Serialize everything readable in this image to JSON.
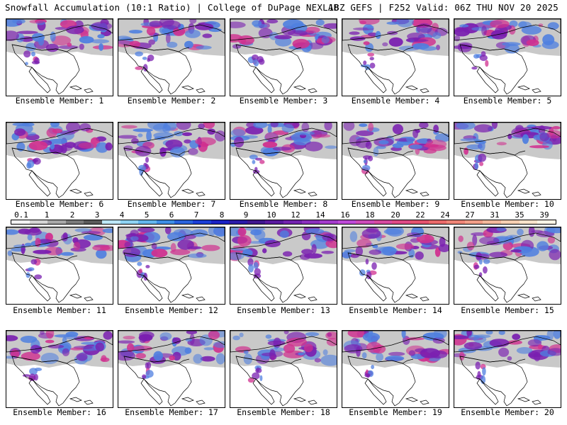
{
  "header": {
    "title_left": "Snowfall Accumulation (10:1 Ratio) | College of DuPage NEXLAB",
    "title_right": "18Z GEFS | F252 Valid: 06Z THU NOV 20 2025"
  },
  "members": [
    "Ensemble Member: 1",
    "Ensemble Member: 2",
    "Ensemble Member: 3",
    "Ensemble Member: 4",
    "Ensemble Member: 5",
    "Ensemble Member: 6",
    "Ensemble Member: 7",
    "Ensemble Member: 8",
    "Ensemble Member: 9",
    "Ensemble Member: 10",
    "Ensemble Member: 11",
    "Ensemble Member: 12",
    "Ensemble Member: 13",
    "Ensemble Member: 14",
    "Ensemble Member: 15",
    "Ensemble Member: 16",
    "Ensemble Member: 17",
    "Ensemble Member: 18",
    "Ensemble Member: 19",
    "Ensemble Member: 20"
  ],
  "colorbar": {
    "labels": [
      "0.1",
      "1",
      "2",
      "3",
      "4",
      "5",
      "6",
      "7",
      "8",
      "9",
      "10",
      "12",
      "14",
      "16",
      "18",
      "20",
      "22",
      "24",
      "27",
      "31",
      "35",
      "39"
    ],
    "colors": [
      "#f2f2f2",
      "#d4d4d4",
      "#a8a8a8",
      "#7a7a7a",
      "#5a5a5a",
      "#bde7f7",
      "#8fd3f2",
      "#64b6ec",
      "#3f8fe5",
      "#2a63dc",
      "#1c3fd6",
      "#1a22c4",
      "#2b1aa8",
      "#40178f",
      "#5a1a9e",
      "#7323ae",
      "#8b2fbd",
      "#a43ccb",
      "#bd4ad7",
      "#cc4bb9",
      "#d54b9f",
      "#de4a86",
      "#e4536e",
      "#e96a6a",
      "#ed8577",
      "#f09e88",
      "#f3b89c",
      "#f6cfb2",
      "#f9e3cb",
      "#fdf4e6"
    ]
  },
  "colors": {
    "land": "#ffffff",
    "outline": "#000000",
    "snow_light": "#c9c9c9",
    "snow_blue": "#4f7fe0",
    "snow_purple": "#7a1fb0",
    "snow_magenta": "#d0308f"
  }
}
